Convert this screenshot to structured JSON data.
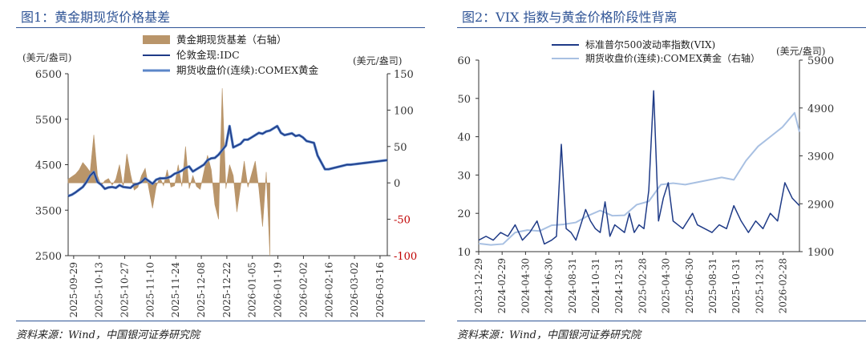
{
  "colors": {
    "gold_bar": "#b9956a",
    "london_line": "#1f3b87",
    "comex_line": "#5b86c8",
    "vix_line": "#1f3b87",
    "gold2_line": "#a8c0e2",
    "title": "#2f5496",
    "neg_tick": "#c00000"
  },
  "chart_data": [
    {
      "title": "图1：黄金期现货价格基差",
      "type": "line+bar",
      "source": "资料来源：Wind，中国银河证券研究院",
      "left_unit": "(美元/盎司)",
      "right_unit": "(美元/盎司)",
      "ylim": [
        2500,
        6500
      ],
      "yticks": [
        "6500",
        "5500",
        "4500",
        "3500",
        "2500"
      ],
      "y2lim": [
        -100,
        150
      ],
      "y2ticks": [
        "150",
        "100",
        "50",
        "0",
        "-50",
        "-100"
      ],
      "xlabels": [
        "2025-09-29",
        "2025-10-13",
        "2025-10-27",
        "2025-11-10",
        "2025-11-24",
        "2025-12-08",
        "2025-12-22",
        "2026-01-05",
        "2026-01-19",
        "2026-02-02",
        "2026-02-16",
        "2026-03-02",
        "2026-03-16"
      ],
      "legend": [
        "黄金期现货基差（右轴）",
        "伦敦金现:IDC",
        "期货收盘价(连续):COMEX黄金"
      ],
      "series": [
        {
          "name": "伦敦金现:IDC",
          "x": [
            0,
            2,
            4,
            6,
            8,
            10,
            12,
            14,
            16,
            18,
            20,
            22,
            24,
            26,
            28,
            30,
            32,
            34,
            36,
            38,
            40,
            42,
            44,
            46,
            48,
            50,
            52,
            54,
            56,
            58,
            60,
            62,
            64,
            66,
            68,
            70,
            72,
            74,
            76,
            78,
            80,
            82,
            84,
            86,
            88,
            90,
            92,
            94,
            96,
            98,
            100,
            102,
            104,
            106,
            108,
            110,
            112,
            114,
            116,
            118,
            120,
            122,
            124,
            126,
            128,
            130,
            132,
            134,
            136,
            138,
            140,
            142,
            144,
            146,
            148,
            150,
            152,
            154,
            156,
            158,
            160,
            162,
            164,
            166,
            168,
            170,
            172,
            174
          ],
          "values": [
            3810,
            3840,
            3890,
            3950,
            4010,
            4120,
            4260,
            4340,
            4120,
            4060,
            3970,
            4000,
            4010,
            3990,
            4050,
            4010,
            4000,
            3990,
            4060,
            4080,
            4120,
            4200,
            4140,
            4080,
            4170,
            4200,
            4200,
            4210,
            4240,
            4300,
            4330,
            4370,
            4430,
            4460,
            4350,
            4400,
            4450,
            4500,
            4600,
            4640,
            4650,
            4720,
            4820,
            4920,
            5350,
            4880,
            4920,
            4960,
            5050,
            5050,
            5100,
            5150,
            5200,
            5180,
            5230,
            5250,
            5300,
            5350,
            5200,
            5150,
            5170,
            5190,
            5130,
            5150,
            5100,
            5020,
            5000,
            4980,
            4700,
            4550,
            4400,
            4400,
            4420,
            4440,
            4460,
            4480,
            4500,
            4500,
            4510,
            4520,
            4530,
            4540,
            4550,
            4560,
            4570,
            4580,
            4590,
            4600
          ]
        },
        {
          "name": "期货收盘价(连续):COMEX黄金",
          "values_note": "closely tracks 伦敦金现"
        },
        {
          "name": "黄金期现货基差（右轴）",
          "type": "bar",
          "x": [
            0,
            4,
            6,
            8,
            10,
            12,
            14,
            16,
            18,
            20,
            22,
            24,
            26,
            28,
            30,
            32,
            34,
            36,
            38,
            40,
            42,
            44,
            46,
            48,
            50,
            52,
            54,
            56,
            58,
            60,
            62,
            64,
            66,
            68,
            70,
            72,
            74,
            76,
            78,
            80,
            82,
            84,
            86,
            88,
            90,
            92,
            94,
            96,
            98,
            100,
            102,
            104,
            106,
            108,
            110
          ],
          "values": [
            5,
            12,
            18,
            28,
            22,
            15,
            66,
            10,
            -4,
            3,
            6,
            -3,
            5,
            25,
            -6,
            40,
            12,
            -10,
            -6,
            10,
            20,
            -8,
            -35,
            -5,
            8,
            -4,
            18,
            -6,
            -4,
            25,
            -5,
            50,
            -8,
            10,
            -5,
            -9,
            15,
            38,
            18,
            -30,
            -50,
            130,
            -8,
            25,
            10,
            -40,
            -5,
            30,
            -6,
            12,
            30,
            -8,
            -60,
            15,
            -100
          ]
        }
      ]
    },
    {
      "title": "图2：VIX 指数与黄金价格阶段性背离",
      "type": "line",
      "source": "资料来源：Wind，中国银河证券研究院",
      "right_unit": "(美元/盎司)",
      "ylim": [
        10,
        60
      ],
      "yticks": [
        "60",
        "50",
        "40",
        "30",
        "20",
        "10"
      ],
      "y2lim": [
        1900,
        5900
      ],
      "y2ticks": [
        "5900",
        "4900",
        "3900",
        "2900",
        "1900"
      ],
      "xlabels": [
        "2023-12-29",
        "2024-02-29",
        "2024-04-30",
        "2024-06-30",
        "2024-08-31",
        "2024-10-31",
        "2024-12-31",
        "2025-02-28",
        "2025-04-30",
        "2025-06-30",
        "2025-08-31",
        "2025-10-31",
        "2025-12-31",
        "2026-02-28"
      ],
      "legend": [
        "标准普尔500波动率指数(VIX)",
        "期货收盘价(连续):COMEX黄金（右轴）"
      ],
      "series": [
        {
          "name": "标准普尔500波动率指数(VIX)",
          "x": [
            0,
            0.3,
            0.6,
            0.9,
            1.2,
            1.5,
            1.8,
            2.1,
            2.4,
            2.7,
            3.0,
            3.2,
            3.4,
            3.6,
            3.8,
            4.0,
            4.2,
            4.4,
            4.6,
            4.8,
            5.0,
            5.2,
            5.4,
            5.6,
            5.8,
            6.0,
            6.2,
            6.4,
            6.6,
            6.8,
            7.0,
            7.2,
            7.4,
            7.6,
            7.8,
            8.0,
            8.2,
            8.4,
            8.6,
            8.8,
            9.0,
            9.3,
            9.6,
            9.9,
            10.2,
            10.5,
            10.8,
            11.1,
            11.4,
            11.7,
            12.0,
            12.3,
            12.6,
            12.9,
            13.2
          ],
          "values": [
            13,
            14,
            13,
            15,
            14,
            17,
            13,
            15,
            18,
            12,
            13,
            14,
            38,
            16,
            15,
            13,
            17,
            21,
            18,
            16,
            15,
            23,
            14,
            17,
            16,
            15,
            20,
            15,
            17,
            16,
            26,
            52,
            18,
            24,
            28,
            18,
            17,
            16,
            18,
            20,
            17,
            16,
            15,
            17,
            16,
            22,
            18,
            15,
            18,
            16,
            20,
            18,
            28,
            24,
            22
          ]
        },
        {
          "name": "期货收盘价(连续):COMEX黄金（右轴）",
          "x": [
            0,
            0.5,
            1,
            1.5,
            2,
            2.5,
            3,
            3.5,
            4,
            4.5,
            5,
            5.5,
            6,
            6.5,
            7,
            7.5,
            8,
            8.5,
            9,
            9.5,
            10,
            10.5,
            11,
            11.5,
            12,
            12.5,
            13,
            13.2
          ],
          "values": [
            2070,
            2040,
            2060,
            2300,
            2350,
            2330,
            2450,
            2470,
            2510,
            2650,
            2760,
            2650,
            2660,
            2880,
            2950,
            3300,
            3330,
            3300,
            3350,
            3400,
            3450,
            3400,
            3800,
            4100,
            4300,
            4500,
            4800,
            4400
          ]
        }
      ]
    }
  ]
}
